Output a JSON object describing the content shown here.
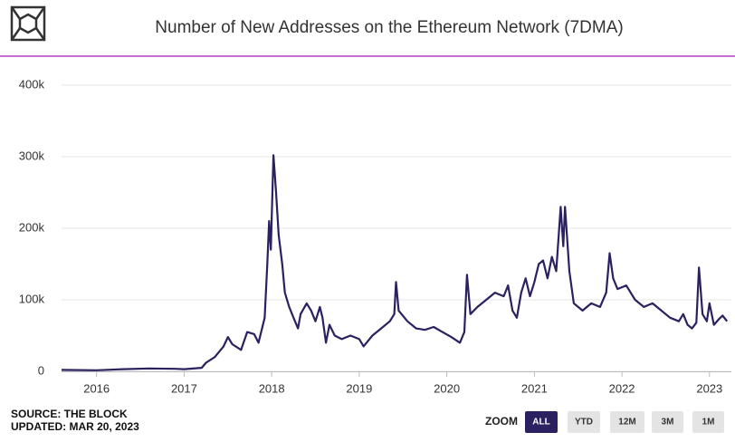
{
  "chart_data": {
    "type": "line",
    "title": "Number of New Addresses on the Ethereum Network (7DMA)",
    "xlim": [
      2015.6,
      2023.25
    ],
    "xticks": [
      2016,
      2017,
      2018,
      2019,
      2020,
      2021,
      2022,
      2023
    ],
    "ylim": [
      0,
      400000
    ],
    "yticks": [
      0,
      {
        "value": 100000,
        "label": "100k"
      },
      {
        "value": 200000,
        "label": "200k"
      },
      {
        "value": 300000,
        "label": "300k"
      },
      {
        "value": 400000,
        "label": "400k"
      }
    ],
    "grid": true,
    "series": [
      {
        "color": "#2b2160",
        "x": [
          2015.6,
          2016.0,
          2016.3,
          2016.6,
          2016.9,
          2017.0,
          2017.2,
          2017.25,
          2017.35,
          2017.45,
          2017.5,
          2017.55,
          2017.65,
          2017.72,
          2017.8,
          2017.85,
          2017.92,
          2017.95,
          2017.97,
          2017.99,
          2018.02,
          2018.05,
          2018.08,
          2018.12,
          2018.15,
          2018.2,
          2018.25,
          2018.3,
          2018.33,
          2018.4,
          2018.45,
          2018.5,
          2018.55,
          2018.58,
          2018.62,
          2018.66,
          2018.72,
          2018.8,
          2018.9,
          2019.0,
          2019.05,
          2019.15,
          2019.25,
          2019.35,
          2019.4,
          2019.42,
          2019.45,
          2019.55,
          2019.65,
          2019.75,
          2019.85,
          2019.95,
          2020.05,
          2020.15,
          2020.2,
          2020.23,
          2020.27,
          2020.35,
          2020.45,
          2020.55,
          2020.65,
          2020.7,
          2020.75,
          2020.8,
          2020.85,
          2020.9,
          2020.95,
          2021.0,
          2021.05,
          2021.1,
          2021.15,
          2021.2,
          2021.25,
          2021.3,
          2021.33,
          2021.35,
          2021.4,
          2021.45,
          2021.55,
          2021.65,
          2021.75,
          2021.82,
          2021.86,
          2021.9,
          2021.95,
          2022.05,
          2022.15,
          2022.25,
          2022.35,
          2022.45,
          2022.55,
          2022.65,
          2022.7,
          2022.75,
          2022.8,
          2022.85,
          2022.88,
          2022.92,
          2022.97,
          2023.0,
          2023.05,
          2023.1,
          2023.15,
          2023.2
        ],
        "values": [
          2000,
          1500,
          3000,
          4000,
          3500,
          3000,
          5000,
          12000,
          20000,
          35000,
          48000,
          38000,
          30000,
          55000,
          52000,
          40000,
          75000,
          150000,
          210000,
          170000,
          302000,
          250000,
          190000,
          150000,
          110000,
          90000,
          75000,
          60000,
          80000,
          95000,
          85000,
          70000,
          90000,
          75000,
          40000,
          65000,
          50000,
          45000,
          50000,
          45000,
          35000,
          50000,
          60000,
          70000,
          80000,
          125000,
          85000,
          70000,
          60000,
          58000,
          62000,
          55000,
          48000,
          40000,
          55000,
          135000,
          80000,
          90000,
          100000,
          110000,
          105000,
          120000,
          85000,
          75000,
          110000,
          130000,
          105000,
          125000,
          150000,
          155000,
          130000,
          160000,
          140000,
          230000,
          175000,
          230000,
          140000,
          95000,
          85000,
          95000,
          90000,
          110000,
          165000,
          130000,
          115000,
          120000,
          100000,
          90000,
          95000,
          85000,
          75000,
          70000,
          80000,
          65000,
          60000,
          68000,
          145000,
          80000,
          70000,
          95000,
          65000,
          72000,
          78000,
          70000
        ]
      }
    ]
  },
  "footer": {
    "source": "SOURCE: THE BLOCK",
    "updated": "UPDATED: MAR 20, 2023"
  },
  "zoom": {
    "label": "ZOOM",
    "buttons": [
      "ALL",
      "YTD",
      "12M",
      "3M",
      "1M"
    ],
    "active": "ALL"
  }
}
